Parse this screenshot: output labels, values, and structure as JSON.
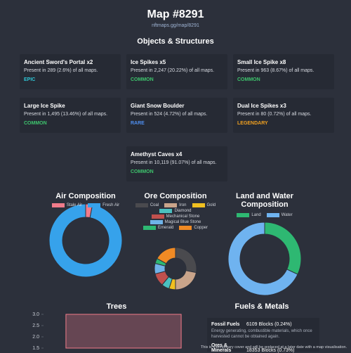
{
  "header": {
    "title": "Map #8291",
    "link": "nftmaps.gg/map/8291"
  },
  "objects": {
    "title": "Objects & Structures",
    "items": [
      {
        "name": "Ancient Sword's Portal x2",
        "presence": "Present in 289 (2.6%) of all maps.",
        "rarity": "EPIC",
        "color": "#2fc6d6"
      },
      {
        "name": "Ice Spikes x5",
        "presence": "Present in 2,247 (20.22%) of all maps.",
        "rarity": "COMMON",
        "color": "#3ec46d"
      },
      {
        "name": "Small Ice Spike x8",
        "presence": "Present in 963 (8.67%) of all maps.",
        "rarity": "COMMON",
        "color": "#3ec46d"
      },
      {
        "name": "Large Ice Spike",
        "presence": "Present in 1,495 (13.46%) of all maps.",
        "rarity": "COMMON",
        "color": "#3ec46d"
      },
      {
        "name": "Giant Snow Boulder",
        "presence": "Present in 524 (4.72%) of all maps.",
        "rarity": "RARE",
        "color": "#4f8ff0"
      },
      {
        "name": "Dual Ice Spikes x3",
        "presence": "Present in 80 (0.72%) of all maps.",
        "rarity": "LEGENDARY",
        "color": "#f0a020"
      },
      {
        "name": "Amethyst Caves x4",
        "presence": "Present in 10,119 (91.07%) of all maps.",
        "rarity": "COMMON",
        "color": "#3ec46d"
      }
    ]
  },
  "chart_data": [
    {
      "type": "doughnut",
      "title": "Air Composition",
      "categories": [
        "Stale Air",
        "Fresh Air"
      ],
      "values": [
        3,
        97
      ],
      "colors": [
        "#f07b8a",
        "#36a2eb"
      ]
    },
    {
      "type": "doughnut",
      "title": "Ore Composition",
      "categories": [
        "Coal",
        "Iron",
        "Gold",
        "Diamond",
        "Mechanical Stone",
        "Magical Blue Stone",
        "Emerald",
        "Copper"
      ],
      "values": [
        28,
        22,
        5,
        6,
        10,
        8,
        4,
        17
      ],
      "colors": [
        "#4a4a4e",
        "#c9a48a",
        "#f0c020",
        "#4bc0c0",
        "#c0504d",
        "#6fb3e8",
        "#2eb872",
        "#f08a24"
      ]
    },
    {
      "type": "doughnut",
      "title": "Land and Water Composition",
      "categories": [
        "Land",
        "Water"
      ],
      "values": [
        32,
        68
      ],
      "colors": [
        "#2eb872",
        "#6fb3f0"
      ]
    },
    {
      "type": "bar",
      "title": "Trees",
      "categories": [
        null
      ],
      "values": [
        3
      ],
      "color": "#f07b8a",
      "ylim": [
        1.5,
        3
      ],
      "yticks": [
        {
          "value": 3,
          "label": "3.0"
        },
        2.5,
        {
          "value": 2,
          "label": "2.0"
        },
        1.5
      ],
      "grid": false
    }
  ],
  "fuels": {
    "title": "Fuels & Metals",
    "items": [
      {
        "name": "Fossil Fuels",
        "count": "6109 Blocks (0.24%)",
        "description": "Energy generating, combustible materials, which once harvested cannot be obtained again."
      },
      {
        "name": "Ores & Minerals",
        "count": "18353 Blocks (0.73%)"
      }
    ],
    "note": "This is a temporary cover and will be replaced at a later date with a map visualisation."
  }
}
